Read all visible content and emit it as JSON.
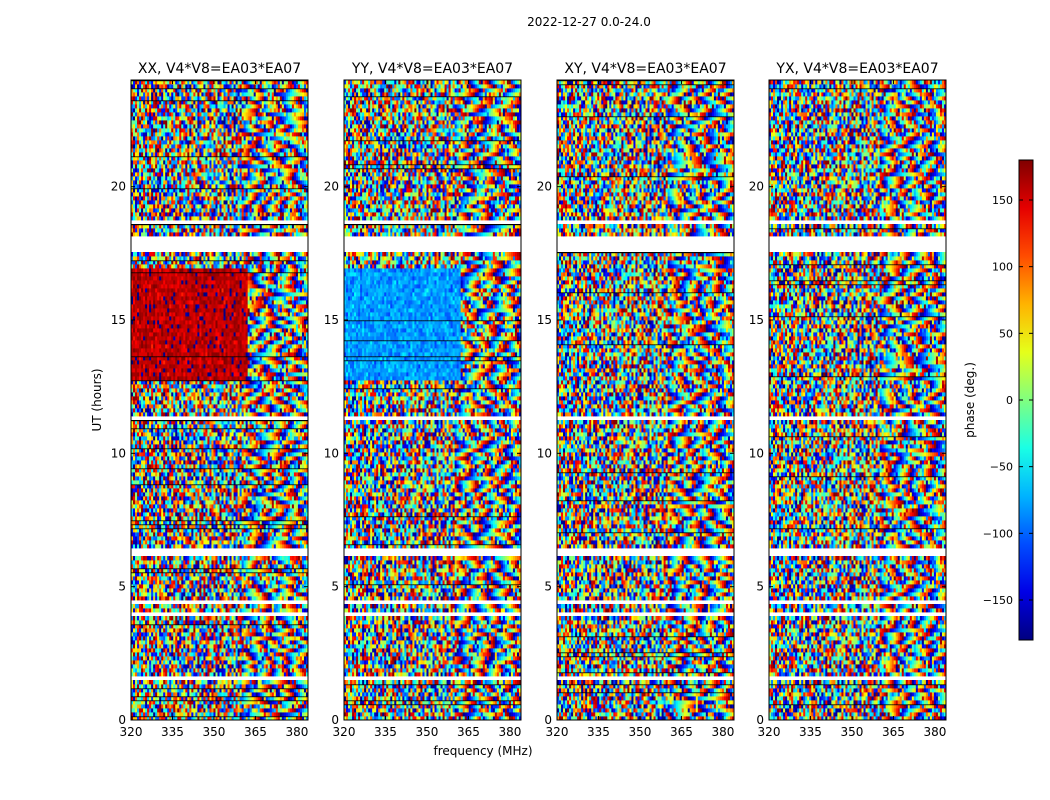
{
  "figure": {
    "suptitle": "2022-12-27 0.0-24.0",
    "xlabel": "frequency (MHz)",
    "ylabel": "UT (hours)",
    "colorbar": {
      "label": "phase (deg.)",
      "ticks": [
        -150,
        -100,
        -50,
        0,
        50,
        100,
        150
      ],
      "tick_labels": [
        "−150",
        "−100",
        "−50",
        "0",
        "50",
        "100",
        "150"
      ],
      "vmin": -180,
      "vmax": 180,
      "colormap": "jet"
    }
  },
  "chart_data": {
    "type": "heatmap",
    "quantity": "phase",
    "units": "deg.",
    "colormap_stops": [
      "#00007f",
      "#0000ff",
      "#00ffff",
      "#ffff00",
      "#ff0000",
      "#7f0000"
    ],
    "xlim": [
      320,
      384
    ],
    "ylim": [
      0,
      24
    ],
    "xticks": [
      320,
      335,
      350,
      365,
      380
    ],
    "yticks": [
      0,
      5,
      10,
      15,
      20
    ],
    "panels": [
      {
        "title": "XX, V4*V8=EA03*EA07",
        "polarization": "XX",
        "dominant_phase_deg": 160
      },
      {
        "title": "YY, V4*V8=EA03*EA07",
        "polarization": "YY",
        "dominant_phase_deg": -80
      },
      {
        "title": "XY, V4*V8=EA03*EA07",
        "polarization": "XY",
        "dominant_phase_deg": 0
      },
      {
        "title": "YX, V4*V8=EA03*EA07",
        "polarization": "YX",
        "dominant_phase_deg": 0
      }
    ],
    "flagged_hour_ranges": [
      [
        17.5,
        18.1
      ],
      [
        6.2,
        6.45
      ],
      [
        4.3,
        4.45
      ],
      [
        11.3,
        11.4
      ],
      [
        18.6,
        18.75
      ],
      [
        0.4,
        0.5
      ],
      [
        1.5,
        1.6
      ],
      [
        3.9,
        4.0
      ]
    ]
  }
}
